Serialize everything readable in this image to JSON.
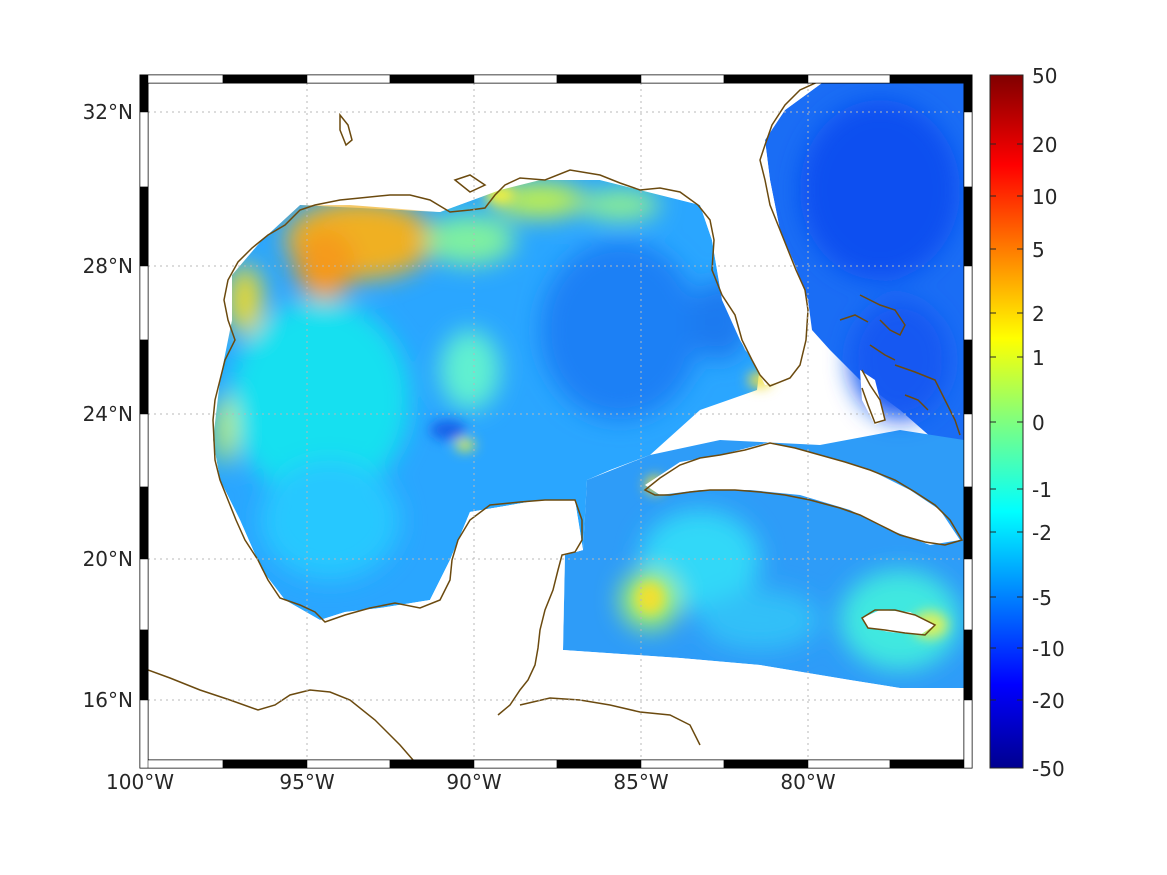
{
  "map": {
    "lon_ticks": [
      "100°W",
      "95°W",
      "90°W",
      "85°W",
      "80°W"
    ],
    "lat_ticks": [
      "32°N",
      "28°N",
      "24°N",
      "20°N",
      "16°N"
    ],
    "lon_range": [
      -100,
      -75.2
    ],
    "lat_range": [
      14.2,
      33
    ],
    "grid": "dotted",
    "coastline_color": "#6b4a0f",
    "colorbar": {
      "colormap": "jet",
      "tick_labels": [
        "50",
        "20",
        "10",
        "5",
        "2",
        "1",
        "0",
        "-1",
        "-2",
        "-5",
        "-10",
        "-20",
        "-50"
      ]
    }
  }
}
